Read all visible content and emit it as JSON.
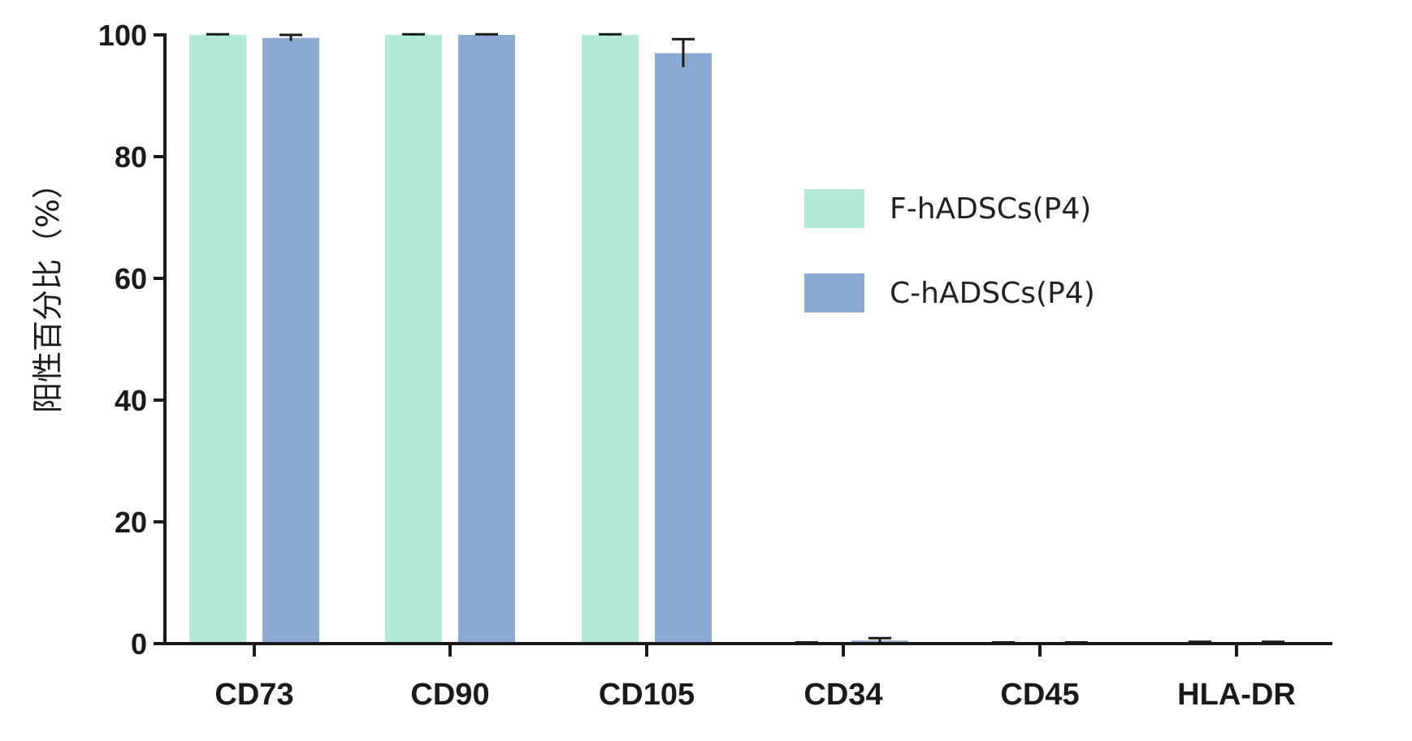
{
  "chart_data": {
    "type": "bar",
    "title": "",
    "xlabel": "",
    "ylabel": "阳性百分比（%）",
    "ylim": [
      0,
      100
    ],
    "yticks": [
      0,
      20,
      40,
      60,
      80,
      100
    ],
    "grid": false,
    "legend_position": "right",
    "categories": [
      "CD73",
      "CD90",
      "CD105",
      "CD34",
      "CD45",
      "HLA-DR"
    ],
    "series": [
      {
        "name": "F-hADSCs(P4)",
        "color": "#b4e8d6",
        "values": [
          100,
          100,
          100,
          0.1,
          0.1,
          0.2
        ],
        "errors": [
          0.1,
          0.1,
          0.1,
          0.1,
          0.1,
          0.1
        ]
      },
      {
        "name": "C-hADSCs(P4)",
        "color": "#8aaad4",
        "values": [
          99.5,
          100,
          97,
          0.5,
          0.1,
          0.2
        ],
        "errors": [
          0.5,
          0.1,
          2.3,
          0.4,
          0.1,
          0.1
        ]
      }
    ]
  }
}
